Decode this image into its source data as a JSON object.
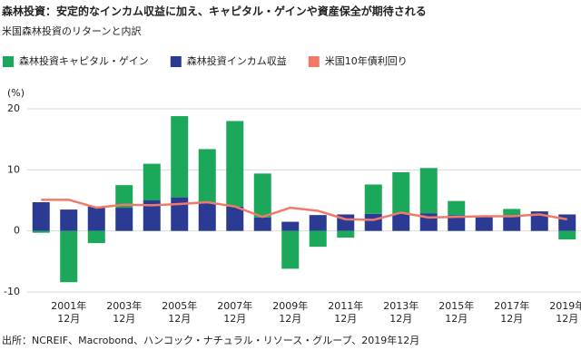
{
  "chart_data": {
    "type": "bar",
    "title": "森林投資：安定的なインカム収益に加え、キャピタル・ゲインや資産保全が期待される",
    "subtitle": "米国森林投資のリターンと内訳",
    "y_unit": "(%)",
    "source": "出所：NCREIF、Macrobond、ハンコック・ナチュラル・リソース・グループ、2019年12月",
    "categories": [
      null,
      "2001年\n12月",
      null,
      "2003年\n12月",
      null,
      "2005年\n12月",
      null,
      "2007年\n12月",
      null,
      "2009年\n12月",
      null,
      "2011年\n12月",
      null,
      "2013年\n12月",
      null,
      "2015年\n12月",
      null,
      "2017年\n12月",
      null,
      "2019年\n12月"
    ],
    "series": [
      {
        "name": "森林投資キャピタル・ゲイン",
        "type": "bar",
        "color": "#1ba85b",
        "values": [
          -0.3,
          -8.4,
          -2.0,
          3.7,
          6.0,
          13.3,
          8.7,
          14.0,
          7.2,
          -6.2,
          -2.6,
          -1.1,
          4.8,
          6.8,
          7.4,
          2.3,
          0,
          1.0,
          0,
          -1.4
        ]
      },
      {
        "name": "森林投資インカム収益",
        "type": "bar",
        "color": "#2b3a92",
        "values": [
          4.7,
          3.5,
          4.0,
          3.8,
          5.0,
          5.5,
          4.7,
          4.0,
          2.2,
          1.5,
          2.6,
          2.7,
          2.8,
          2.8,
          2.9,
          2.6,
          2.4,
          2.6,
          3.2,
          2.7
        ]
      },
      {
        "name": "米国10年債利回り",
        "type": "line",
        "color": "#f07a6a",
        "values": [
          5.1,
          5.1,
          3.8,
          4.3,
          4.2,
          4.4,
          4.7,
          4.0,
          2.3,
          3.8,
          3.3,
          1.9,
          1.8,
          3.0,
          2.2,
          2.3,
          2.4,
          2.4,
          2.7,
          1.9
        ]
      }
    ],
    "ylim": [
      -10,
      20
    ],
    "yticks": [
      20,
      10,
      0,
      -10
    ],
    "grid": true
  }
}
